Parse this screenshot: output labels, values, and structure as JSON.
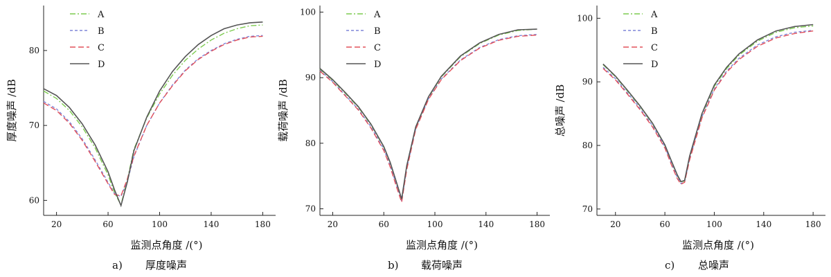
{
  "colors": {
    "A": "#7ccb4e",
    "B": "#7f86d9",
    "C": "#e2505a",
    "D": "#555555"
  },
  "chart_data": [
    {
      "type": "line",
      "caption_letter": "a)",
      "caption_title": "厚度噪声",
      "xlabel": "监测点角度 /(°)",
      "ylabel": "厚度噪声 /dB",
      "xlim": [
        10,
        190
      ],
      "ylim": [
        58,
        86
      ],
      "xticks": [
        20,
        60,
        100,
        140,
        180
      ],
      "yticks": [
        60,
        70,
        80
      ],
      "grid": false,
      "legend_position": "top-left",
      "x": [
        10,
        20,
        30,
        40,
        50,
        60,
        65,
        70,
        75,
        80,
        90,
        100,
        110,
        120,
        130,
        140,
        150,
        160,
        170,
        180
      ],
      "series": [
        {
          "name": "A",
          "style": "dashdot",
          "values": [
            74.6,
            73.6,
            72.0,
            69.8,
            67.0,
            63.4,
            61.0,
            59.4,
            62.8,
            66.8,
            71.0,
            74.2,
            76.7,
            78.7,
            80.2,
            81.4,
            82.3,
            82.9,
            83.3,
            83.4
          ]
        },
        {
          "name": "B",
          "style": "dashed",
          "values": [
            73.2,
            72.2,
            70.5,
            68.2,
            65.4,
            62.4,
            60.9,
            60.5,
            62.6,
            65.8,
            70.0,
            73.0,
            75.4,
            77.4,
            78.9,
            80.0,
            80.9,
            81.5,
            81.9,
            82.0
          ]
        },
        {
          "name": "C",
          "style": "longdash",
          "values": [
            73.0,
            72.0,
            70.3,
            68.0,
            65.2,
            62.2,
            60.8,
            60.6,
            62.9,
            65.9,
            70.0,
            73.0,
            75.3,
            77.3,
            78.8,
            79.9,
            80.8,
            81.4,
            81.8,
            81.9
          ]
        },
        {
          "name": "D",
          "style": "solid",
          "values": [
            74.9,
            74.0,
            72.4,
            70.2,
            67.4,
            63.8,
            61.4,
            59.3,
            62.5,
            66.6,
            71.1,
            74.6,
            77.2,
            79.2,
            80.8,
            82.0,
            82.9,
            83.4,
            83.7,
            83.8
          ]
        }
      ]
    },
    {
      "type": "line",
      "caption_letter": "b)",
      "caption_title": "载荷噪声",
      "xlabel": "监测点角度 /(°)",
      "ylabel": "载荷噪声 /dB",
      "xlim": [
        10,
        190
      ],
      "ylim": [
        69,
        101
      ],
      "xticks": [
        20,
        60,
        100,
        140,
        180
      ],
      "yticks": [
        70,
        80,
        90,
        100
      ],
      "grid": false,
      "legend_position": "top-left",
      "x": [
        10,
        20,
        30,
        40,
        50,
        60,
        65,
        70,
        74,
        78,
        85,
        95,
        105,
        120,
        135,
        150,
        165,
        180
      ],
      "series": [
        {
          "name": "A",
          "style": "dashdot",
          "values": [
            91.3,
            89.6,
            87.6,
            85.5,
            82.8,
            79.4,
            77.0,
            73.9,
            71.4,
            76.5,
            82.4,
            87.0,
            90.1,
            93.2,
            95.2,
            96.5,
            97.2,
            97.4
          ]
        },
        {
          "name": "B",
          "style": "dashed",
          "values": [
            91.1,
            89.4,
            87.3,
            85.2,
            82.5,
            79.1,
            76.6,
            73.6,
            71.2,
            76.2,
            82.2,
            86.8,
            89.8,
            92.7,
            94.6,
            95.8,
            96.4,
            96.6
          ]
        },
        {
          "name": "C",
          "style": "longdash",
          "values": [
            91.0,
            89.3,
            87.2,
            85.1,
            82.3,
            78.9,
            76.4,
            73.3,
            71.0,
            76.0,
            82.1,
            86.7,
            89.7,
            92.6,
            94.5,
            95.7,
            96.3,
            96.5
          ]
        },
        {
          "name": "D",
          "style": "solid",
          "values": [
            91.4,
            89.7,
            87.7,
            85.6,
            82.9,
            79.5,
            77.1,
            74.0,
            71.5,
            76.6,
            82.5,
            87.1,
            90.2,
            93.3,
            95.3,
            96.6,
            97.3,
            97.4
          ]
        }
      ]
    },
    {
      "type": "line",
      "caption_letter": "c)",
      "caption_title": "总噪声",
      "xlabel": "监测点角度 /(°)",
      "ylabel": "总噪声 /dB",
      "xlim": [
        5,
        190
      ],
      "ylim": [
        69,
        102
      ],
      "xticks": [
        20,
        60,
        100,
        140,
        180
      ],
      "yticks": [
        70,
        80,
        90,
        100
      ],
      "grid": false,
      "legend_position": "top-left",
      "x": [
        10,
        20,
        30,
        40,
        50,
        60,
        65,
        70,
        73,
        76,
        80,
        90,
        100,
        110,
        120,
        135,
        150,
        165,
        180
      ],
      "series": [
        {
          "name": "A",
          "style": "dashdot",
          "values": [
            92.7,
            90.8,
            88.5,
            86.1,
            83.4,
            80.0,
            77.6,
            75.3,
            74.2,
            74.4,
            78.1,
            84.8,
            89.3,
            92.1,
            94.2,
            96.4,
            97.8,
            98.5,
            98.8
          ]
        },
        {
          "name": "B",
          "style": "dashed",
          "values": [
            92.3,
            90.5,
            88.2,
            85.8,
            83.1,
            79.8,
            77.3,
            75.0,
            74.0,
            74.3,
            77.9,
            84.5,
            88.9,
            91.7,
            93.7,
            95.8,
            97.1,
            97.8,
            98.1
          ]
        },
        {
          "name": "C",
          "style": "longdash",
          "values": [
            92.1,
            90.3,
            88.0,
            85.6,
            82.9,
            79.6,
            77.1,
            74.8,
            73.9,
            74.2,
            77.7,
            84.3,
            88.7,
            91.5,
            93.5,
            95.6,
            96.9,
            97.6,
            98.0
          ]
        },
        {
          "name": "D",
          "style": "solid",
          "values": [
            92.8,
            90.9,
            88.6,
            86.2,
            83.5,
            80.1,
            77.7,
            75.4,
            74.3,
            74.5,
            78.3,
            85.0,
            89.5,
            92.3,
            94.4,
            96.6,
            98.0,
            98.7,
            99.0
          ]
        }
      ]
    }
  ]
}
